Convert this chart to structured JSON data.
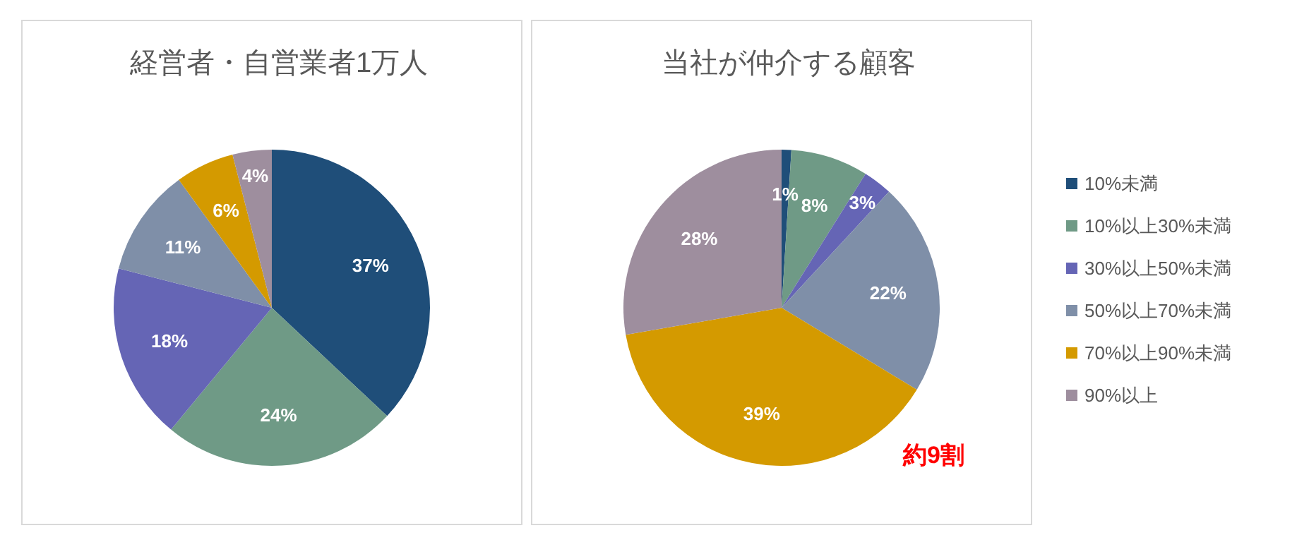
{
  "chart_data": [
    {
      "type": "pie",
      "title": "経営者・自営業者1万人",
      "values": [
        37,
        24,
        18,
        11,
        6,
        4
      ],
      "value_labels": [
        "37%",
        "24%",
        "18%",
        "11%",
        "6%",
        "4%"
      ],
      "colors": [
        "#1f4e79",
        "#6f9a86",
        "#6565b5",
        "#7f8fa8",
        "#d49a00",
        "#9e8e9e"
      ],
      "legend": false
    },
    {
      "type": "pie",
      "title": "当社が仲介する顧客",
      "categories": [
        "10%未満",
        "10%以上30%未満",
        "30%以上50%未満",
        "50%以上70%未満",
        "70%以上90%未満",
        "90%以上"
      ],
      "values": [
        1,
        8,
        3,
        22,
        39,
        28
      ],
      "value_labels": [
        "1%",
        "8%",
        "3%",
        "22%",
        "39%",
        "28%"
      ],
      "colors": [
        "#1f4e79",
        "#6f9a86",
        "#6565b5",
        "#7f8fa8",
        "#d49a00",
        "#9e8e9e"
      ],
      "legend": "right",
      "annotations": [
        "約9割"
      ]
    }
  ]
}
